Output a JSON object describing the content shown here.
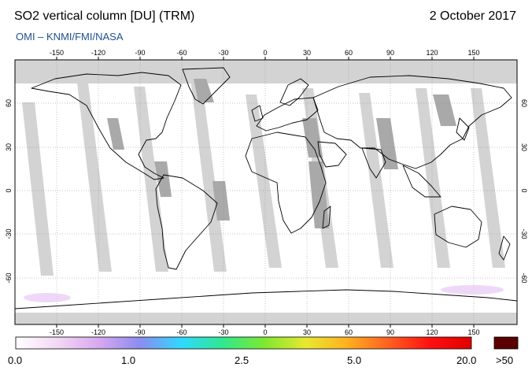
{
  "header": {
    "title": "SO2 vertical column [DU] (TRM)",
    "date": "2 October 2017",
    "credit": "OMI  –  KNMI/FMI/NASA"
  },
  "map": {
    "projection": "equirectangular",
    "lon_ticks": [
      "-150",
      "-120",
      "-90",
      "-60",
      "-30",
      "0",
      "30",
      "60",
      "90",
      "120",
      "150"
    ],
    "lat_ticks": [
      "60",
      "30",
      "0",
      "-30",
      "-60"
    ],
    "grid": true,
    "no_data_color": "#d3d3d3",
    "land_missing_color": "#a9a9a9"
  },
  "colorbar": {
    "labels": [
      "0.0",
      "1.0",
      "2.5",
      "5.0",
      "20.0"
    ],
    "overflow_label": ">50",
    "overflow_color": "#5a0000",
    "colors": [
      "#ffffff",
      "#f4d8f4",
      "#d8a8f0",
      "#8c8cf0",
      "#30d8ff",
      "#30e890",
      "#7ee830",
      "#e8e830",
      "#ffb020",
      "#ff6020",
      "#ff1010",
      "#e00000"
    ]
  }
}
